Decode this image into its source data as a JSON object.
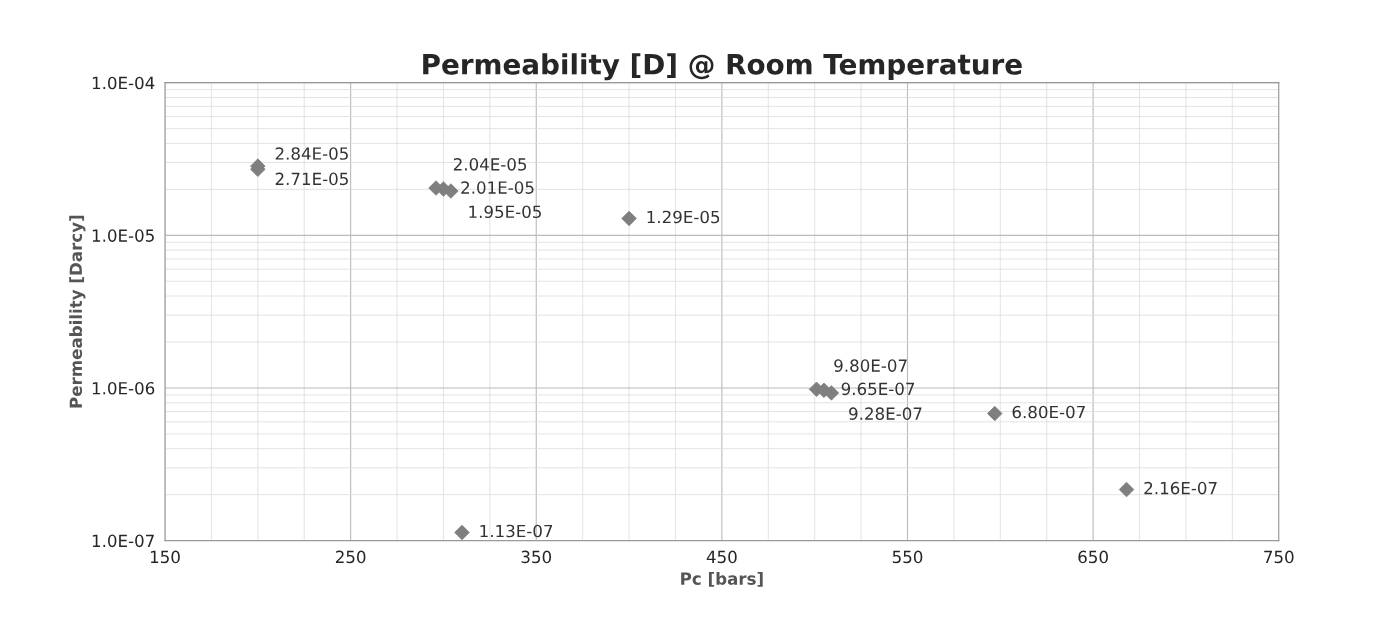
{
  "chart_data": {
    "type": "scatter",
    "title": "Permeability [D] @ Room Temperature",
    "xlabel": "Pc [bars]",
    "ylabel": "Permeability [Darcy]",
    "x": [
      200,
      200,
      296,
      300,
      304,
      400,
      310,
      501,
      505,
      509,
      597,
      668
    ],
    "values": [
      2.71e-05,
      2.84e-05,
      2.04e-05,
      2.01e-05,
      1.95e-05,
      1.29e-05,
      1.13e-07,
      9.8e-07,
      9.65e-07,
      9.28e-07,
      6.8e-07,
      2.16e-07
    ],
    "value_labels": [
      "2.71E-05",
      "2.84E-05",
      "2.04E-05",
      "2.01E-05",
      "1.95E-05",
      "1.29E-05",
      "1.13E-07",
      "9.80E-07",
      "9.65E-07",
      "9.28E-07",
      "6.80E-07",
      "2.16E-07"
    ],
    "color": "#7f7f7f",
    "marker": "diamond",
    "log": "y",
    "grid": true,
    "xlim": [
      150,
      750
    ],
    "xticks": [
      150,
      250,
      350,
      450,
      550,
      650,
      750
    ],
    "ylim": [
      1e-07,
      0.0001
    ],
    "yticks": [
      {
        "value": 1e-07,
        "label": "1.0E-07"
      },
      {
        "value": 1e-06,
        "label": "1.0E-06"
      },
      {
        "value": 1e-05,
        "label": "1.0E-05"
      },
      {
        "value": 0.0001,
        "label": "1.0E-04"
      }
    ]
  }
}
